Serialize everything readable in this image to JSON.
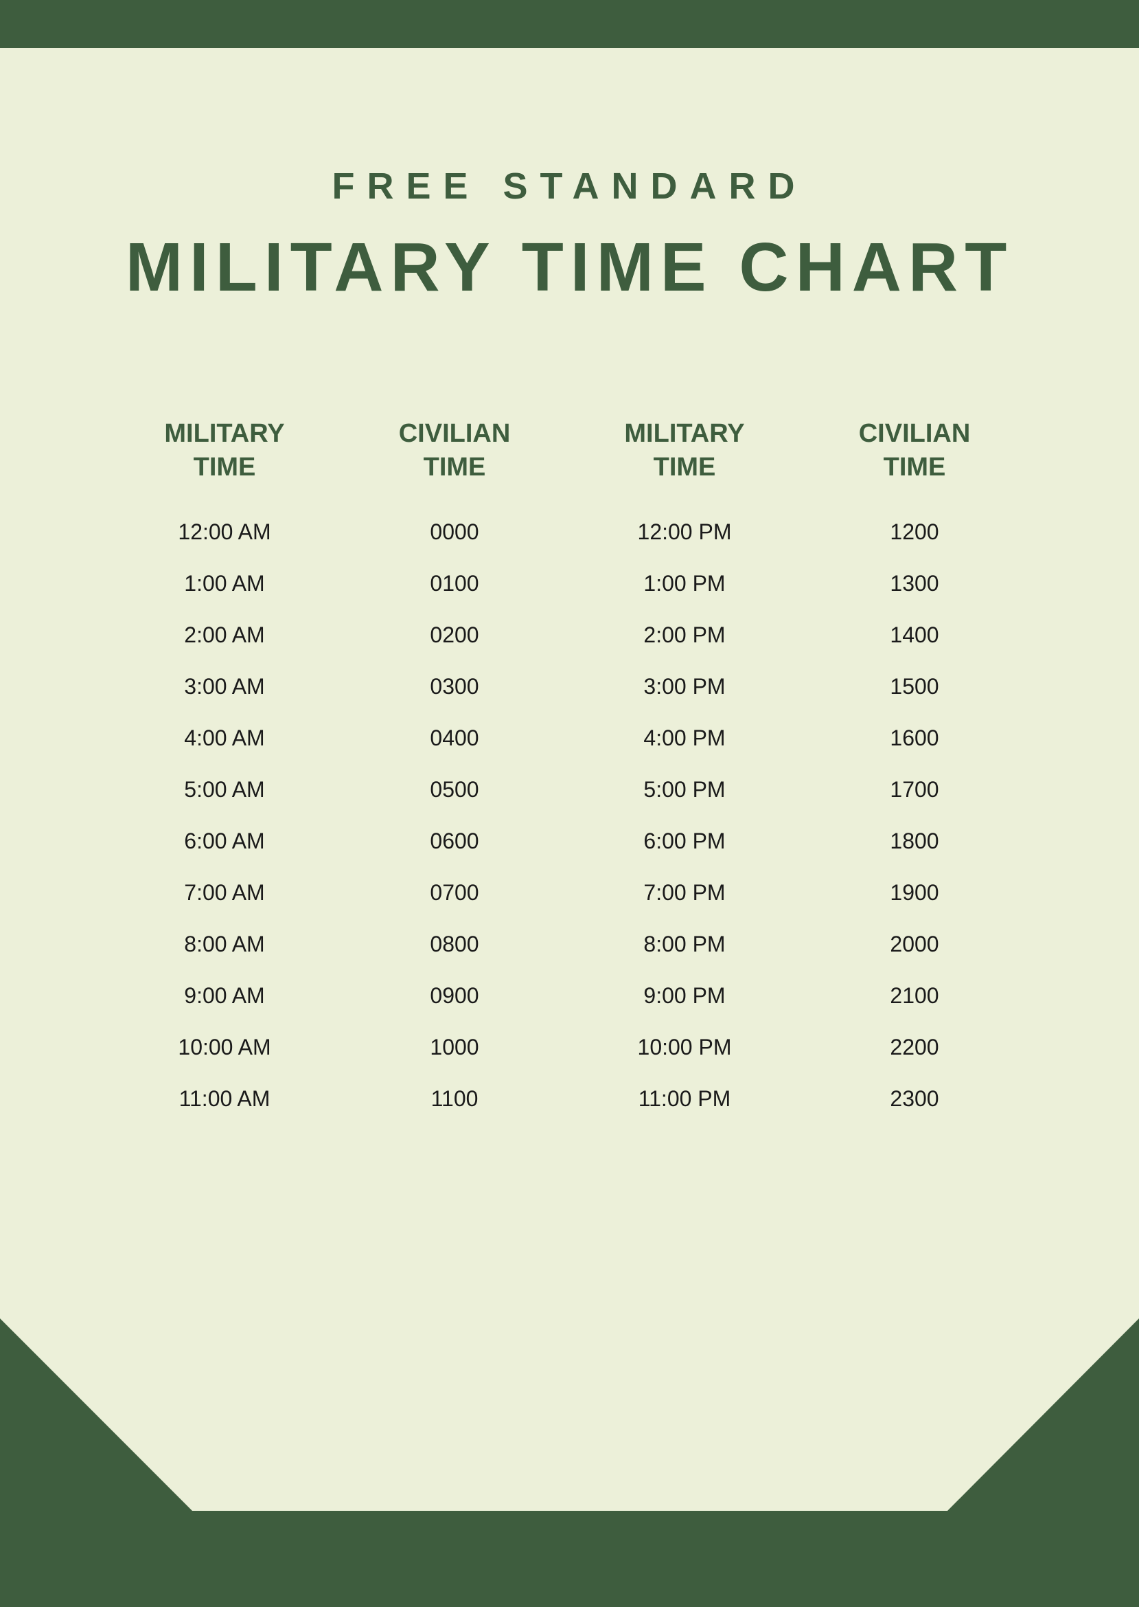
{
  "colors": {
    "background": "#ecf0d9",
    "accent": "#3e5d3e",
    "text": "#1a1a1a"
  },
  "header": {
    "subtitle": "FREE STANDARD",
    "title": "MILITARY TIME CHART"
  },
  "table": {
    "columns": [
      {
        "line1": "MILITARY",
        "line2": "TIME"
      },
      {
        "line1": "CIVILIAN",
        "line2": "TIME"
      },
      {
        "line1": "MILITARY",
        "line2": "TIME"
      },
      {
        "line1": "CIVILIAN",
        "line2": "TIME"
      }
    ],
    "rows": [
      [
        "12:00 AM",
        "0000",
        "12:00 PM",
        "1200"
      ],
      [
        "1:00 AM",
        "0100",
        "1:00 PM",
        "1300"
      ],
      [
        "2:00 AM",
        "0200",
        "2:00 PM",
        "1400"
      ],
      [
        "3:00 AM",
        "0300",
        "3:00 PM",
        "1500"
      ],
      [
        "4:00 AM",
        "0400",
        "4:00 PM",
        "1600"
      ],
      [
        "5:00 AM",
        "0500",
        "5:00 PM",
        "1700"
      ],
      [
        "6:00 AM",
        "0600",
        "6:00 PM",
        "1800"
      ],
      [
        "7:00 AM",
        "0700",
        "7:00 PM",
        "1900"
      ],
      [
        "8:00 AM",
        "0800",
        "8:00 PM",
        "2000"
      ],
      [
        "9:00 AM",
        "0900",
        "9:00 PM",
        "2100"
      ],
      [
        "10:00 AM",
        "1000",
        "10:00 PM",
        "2200"
      ],
      [
        "11:00 AM",
        "1100",
        "11:00 PM",
        "2300"
      ]
    ]
  },
  "typography": {
    "subtitle_fontsize": 54,
    "title_fontsize": 100,
    "header_fontsize": 38,
    "cell_fontsize": 32
  }
}
